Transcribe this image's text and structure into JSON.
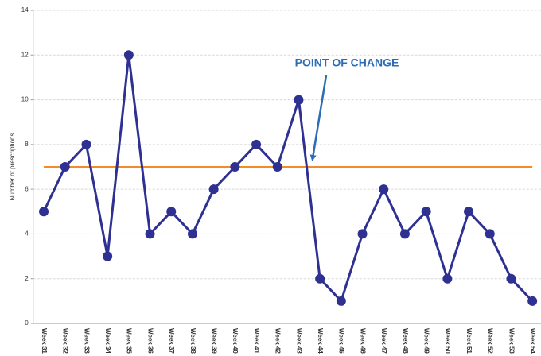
{
  "chart_data": {
    "type": "line",
    "y_label": "Number of prescriptions",
    "categories": [
      "Week 31",
      "Week 32",
      "Week 33",
      "Week 34",
      "Week 35",
      "Week 36",
      "Week 37",
      "Week 38",
      "Week 39",
      "Week 40",
      "Week 41",
      "Week 42",
      "Week 43",
      "Week 44",
      "Week 45",
      "Week 46",
      "Week 47",
      "Week 48",
      "Week 49",
      "Week 50",
      "Week 51",
      "Week 52",
      "Week 53",
      "Week 54"
    ],
    "series": [
      {
        "color": "#2e3192",
        "values": [
          5,
          7,
          8,
          3,
          12,
          4,
          5,
          4,
          6,
          7,
          8,
          7,
          10,
          2,
          1,
          4,
          6,
          4,
          5,
          2,
          5,
          4,
          2,
          1
        ]
      }
    ],
    "median": 7,
    "median_color": "#f28c28",
    "annotation": "POINT OF CHANGE",
    "annotation_color": "#2a6cb5",
    "ylim": [
      0,
      14
    ],
    "yticks": [
      0,
      2,
      4,
      6,
      8,
      10,
      12,
      14
    ],
    "grid": true
  }
}
